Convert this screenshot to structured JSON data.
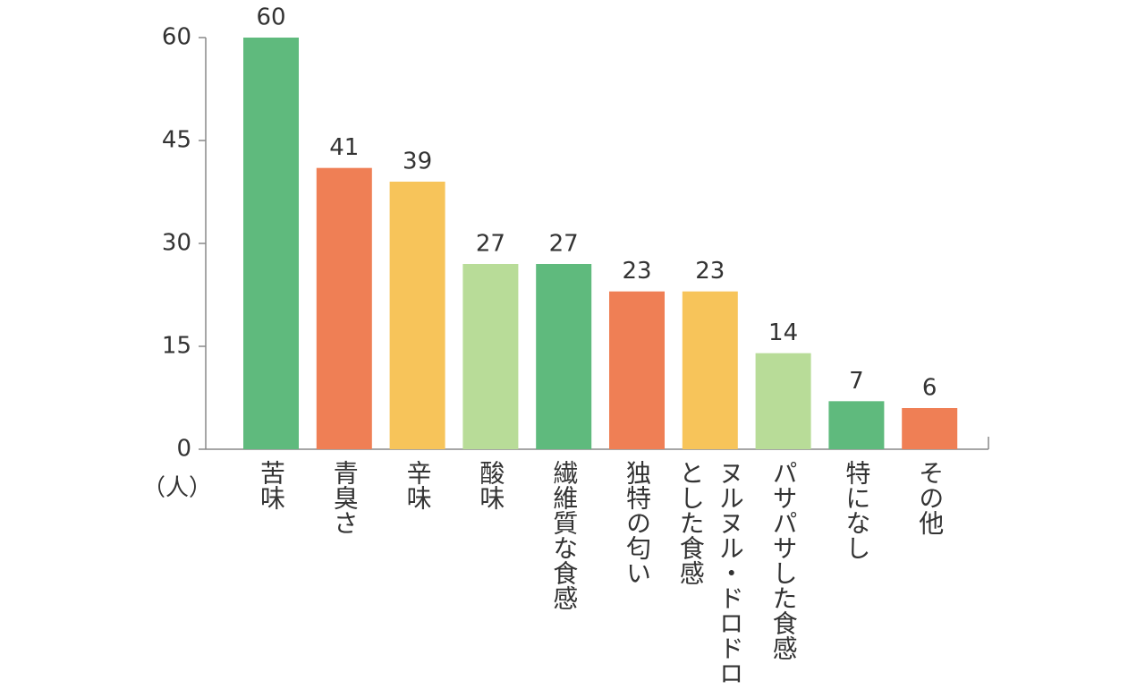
{
  "chart_data": {
    "type": "bar",
    "y_axis_label": "（人）",
    "categories": [
      "苦味",
      "青臭さ",
      "辛味",
      "酸味",
      "繊維質な食感",
      "独特の匂い",
      "ヌルヌル・ドロドロとした食感",
      "パサパサした食感",
      "特になし",
      "その他"
    ],
    "values": [
      60,
      41,
      39,
      27,
      27,
      23,
      23,
      14,
      7,
      6
    ],
    "colors": [
      "#5fba7d",
      "#ef7f55",
      "#f7c45a",
      "#b8dc98",
      "#5fba7d",
      "#ef7f55",
      "#f7c45a",
      "#b8dc98",
      "#5fba7d",
      "#ef7f55"
    ],
    "ylim": [
      0,
      60
    ],
    "yticks": [
      0,
      15,
      30,
      45,
      60
    ],
    "grid": false
  }
}
